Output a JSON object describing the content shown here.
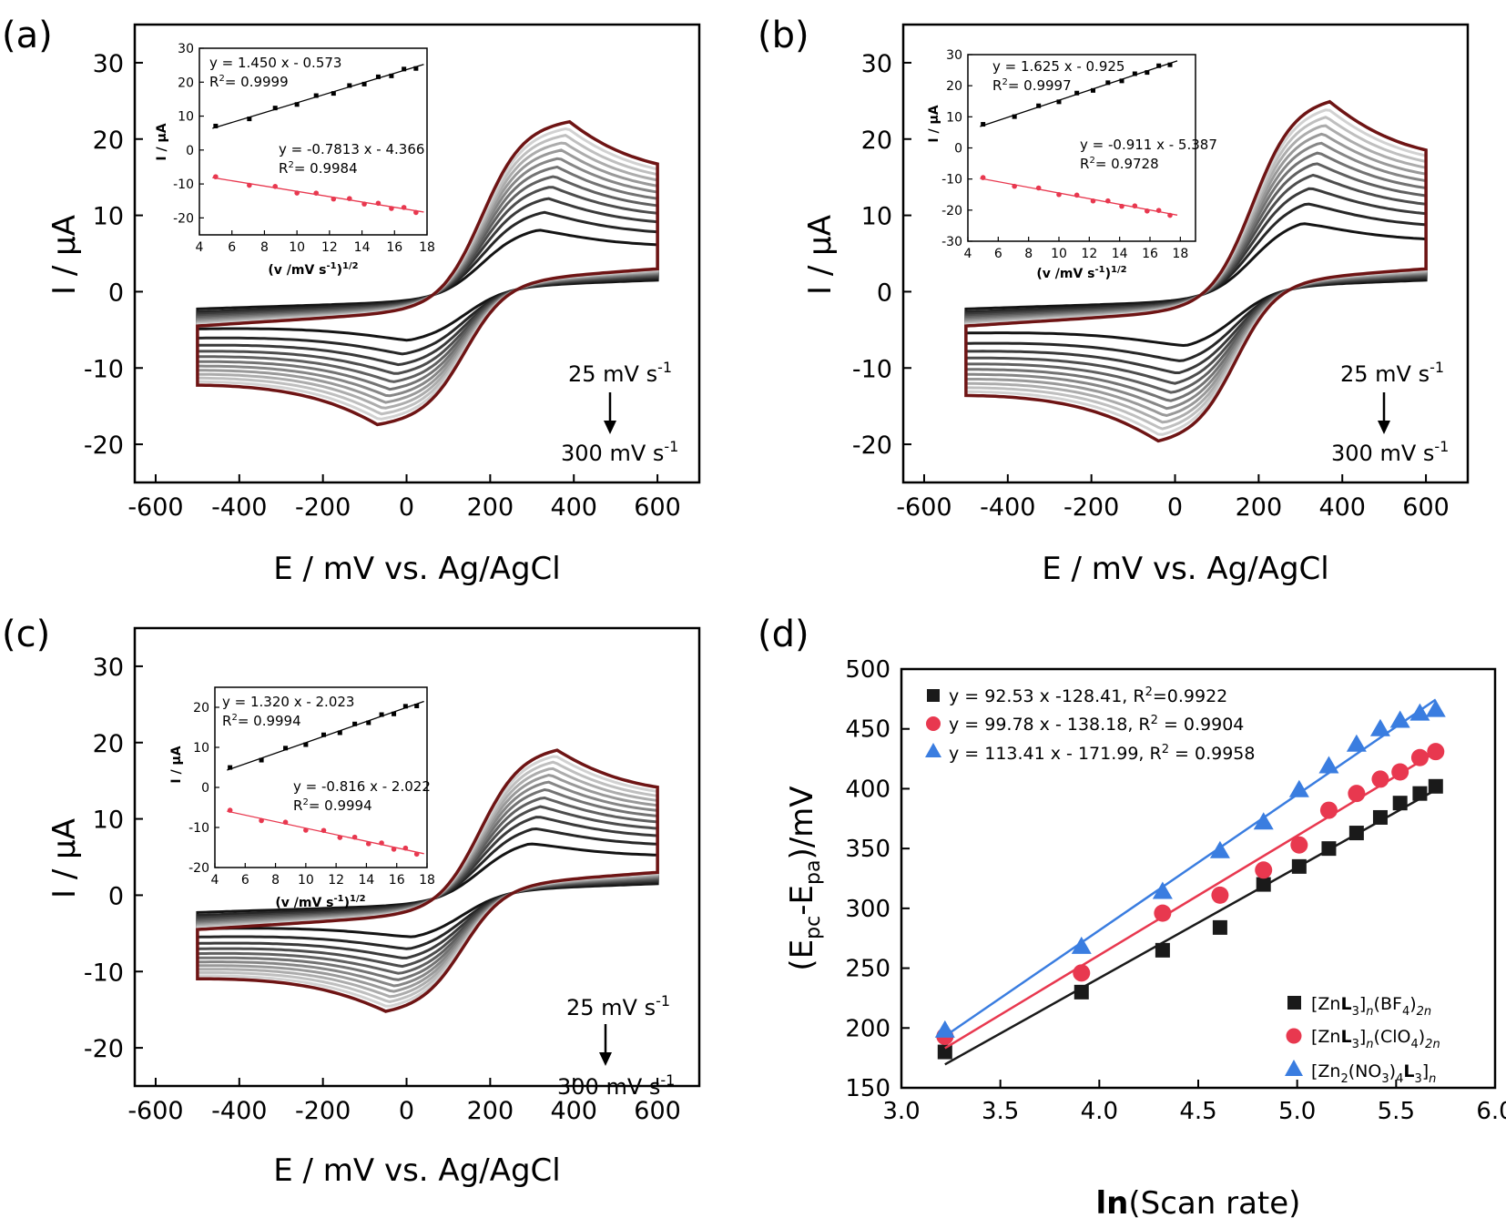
{
  "panels": {
    "a": {
      "letter": "(a)",
      "xlabel": "E / mV vs. Ag/AgCl",
      "ylabel": "I / μA",
      "xticks": [
        "-600",
        "-400",
        "-200",
        "0",
        "200",
        "400",
        "600"
      ],
      "yticks": [
        "30",
        "20",
        "10",
        "0",
        "-10",
        "-20"
      ],
      "rate_start": "25 mV s",
      "rate_end": "300 mV s",
      "rate_exp": "-1",
      "inset": {
        "xlabel": "(v /mV s",
        "xlabel_sup1": "-1",
        "xlabel_close": ")",
        "xlabel_sup2": "1/2",
        "ylabel": "I / μA",
        "xticks": [
          "4",
          "6",
          "8",
          "10",
          "12",
          "14",
          "16",
          "18"
        ],
        "yticks": [
          "30",
          "20",
          "10",
          "0",
          "-10",
          "-20"
        ],
        "eq1": "y = 1.450  x - 0.573",
        "r1_prefix": "R",
        "r1_sup": "2",
        "r1_value": "= 0.9999",
        "eq2": "y = -0.7813 x - 4.366",
        "r2_prefix": "R",
        "r2_sup": "2",
        "r2_value": "= 0.9984"
      }
    },
    "b": {
      "letter": "(b)",
      "xlabel": "E / mV vs. Ag/AgCl",
      "ylabel": "I / μA",
      "xticks": [
        "-600",
        "-400",
        "-200",
        "0",
        "200",
        "400",
        "600"
      ],
      "yticks": [
        "30",
        "20",
        "10",
        "0",
        "-10",
        "-20"
      ],
      "rate_start": "25 mV s",
      "rate_end": "300 mV s",
      "rate_exp": "-1",
      "inset": {
        "xlabel": "(v /mV s",
        "xlabel_sup1": "-1",
        "xlabel_close": ")",
        "xlabel_sup2": "1/2",
        "ylabel": "I / μA",
        "xticks": [
          "4",
          "6",
          "8",
          "10",
          "12",
          "14",
          "16",
          "18"
        ],
        "yticks": [
          "30",
          "20",
          "10",
          "0",
          "-10",
          "-20",
          "-30"
        ],
        "eq1": "y = 1.625 x - 0.925",
        "r1_prefix": "R",
        "r1_sup": "2",
        "r1_value": "= 0.9997",
        "eq2": "y = -0.911 x - 5.387",
        "r2_prefix": "R",
        "r2_sup": "2",
        "r2_value": "= 0.9728"
      }
    },
    "c": {
      "letter": "(c)",
      "xlabel": "E / mV vs. Ag/AgCl",
      "ylabel": "I / μA",
      "xticks": [
        "-600",
        "-400",
        "-200",
        "0",
        "200",
        "400",
        "600"
      ],
      "yticks": [
        "30",
        "20",
        "10",
        "0",
        "-10",
        "-20"
      ],
      "rate_start": "25 mV s",
      "rate_end": "300 mV s",
      "rate_exp": "-1",
      "inset": {
        "xlabel": "(v /mV s",
        "xlabel_sup1": "-1",
        "xlabel_close": ")",
        "xlabel_sup2": "1/2",
        "ylabel": "I / μA",
        "xticks": [
          "4",
          "6",
          "8",
          "10",
          "12",
          "14",
          "16",
          "18"
        ],
        "yticks": [
          "20",
          "10",
          "0",
          "-10",
          "-20"
        ],
        "eq1": "y = 1.320 x - 2.023",
        "r1_prefix": "R",
        "r1_sup": "2",
        "r1_value": "= 0.9994",
        "eq2": "y = -0.816 x - 2.022",
        "r2_prefix": "R",
        "r2_sup": "2",
        "r2_value": "= 0.9994"
      }
    },
    "d": {
      "letter": "(d)",
      "xlabel_bold": "ln",
      "xlabel_rest": "(Scan rate)",
      "ylabel_open": "(E",
      "ylabel_sub1": "pc",
      "ylabel_mid": "-E",
      "ylabel_sub2": "pa",
      "ylabel_close": ")/mV",
      "xticks": [
        "3.0",
        "3.5",
        "4.0",
        "4.5",
        "5.0",
        "5.5",
        "6.0"
      ],
      "yticks": [
        "500",
        "450",
        "400",
        "350",
        "300",
        "250",
        "200",
        "150"
      ],
      "eq1_pre": "y = 92.53 x -128.41,  R",
      "eq1_sup": "2",
      "eq1_post": "=0.9922",
      "eq2_pre": "y = 99.78 x - 138.18, R",
      "eq2_sup": "2",
      "eq2_post": " = 0.9904",
      "eq3_pre": "y = 113.41 x - 171.99, R",
      "eq3_sup": "2",
      "eq3_post": " = 0.9958",
      "leg1_a": "[Zn",
      "leg1_b": "L",
      "leg1_c": "3",
      "leg1_d": "]",
      "leg1_e": "n",
      "leg1_f": "(BF",
      "leg1_g": "4",
      "leg1_h": ")",
      "leg1_i": "2n",
      "leg2_a": "[Zn",
      "leg2_b": "L",
      "leg2_c": "3",
      "leg2_d": "]",
      "leg2_e": "n",
      "leg2_f": "(ClO",
      "leg2_g": "4",
      "leg2_h": ")",
      "leg2_i": "2n",
      "leg3_a": "[Zn",
      "leg3_a2": "2",
      "leg3_a3": "(NO",
      "leg3_a4": "3",
      "leg3_a5": ")",
      "leg3_a6": "4",
      "leg3_b": "L",
      "leg3_c": "3",
      "leg3_d": "]",
      "leg3_e": "n"
    }
  },
  "chart_data": [
    {
      "panel": "a",
      "type": "line",
      "xlabel": "E / mV vs. Ag/AgCl",
      "ylabel": "I / μA",
      "xlim": [
        -650,
        700
      ],
      "ylim": [
        -25,
        35
      ],
      "scan_rates_mV_s": [
        25,
        50,
        75,
        100,
        125,
        150,
        175,
        200,
        225,
        250,
        275,
        300
      ],
      "curve_params": {
        "e_ox": 390,
        "e_red": -70,
        "i_pa_max": 24,
        "i_pc_max": -18
      },
      "inset": {
        "type": "scatter",
        "xlabel": "(v /mV s-1)1/2",
        "ylabel": "I / μA",
        "xlim": [
          4,
          18
        ],
        "ylim": [
          -25,
          30
        ],
        "series": [
          {
            "x": [
              5,
              7.07,
              8.66,
              10,
              11.18,
              12.25,
              13.23,
              14.14,
              15,
              15.81,
              16.58,
              17.32
            ],
            "fit": [
              1.45,
              -0.573
            ],
            "color": "#000000"
          },
          {
            "x": [
              5,
              7.07,
              8.66,
              10,
              11.18,
              12.25,
              13.23,
              14.14,
              15,
              15.81,
              16.58,
              17.32
            ],
            "fit": [
              -0.7813,
              -4.366
            ],
            "color": "#e8384f"
          }
        ]
      }
    },
    {
      "panel": "b",
      "type": "line",
      "xlabel": "E / mV vs. Ag/AgCl",
      "ylabel": "I / μA",
      "xlim": [
        -650,
        700
      ],
      "ylim": [
        -25,
        35
      ],
      "scan_rates_mV_s": [
        25,
        50,
        75,
        100,
        125,
        150,
        175,
        200,
        225,
        250,
        275,
        300
      ],
      "curve_params": {
        "e_ox": 370,
        "e_red": -40,
        "i_pa_max": 27,
        "i_pc_max": -20.5
      },
      "inset": {
        "type": "scatter",
        "xlabel": "(v /mV s-1)1/2",
        "ylabel": "I / μA",
        "xlim": [
          4,
          19
        ],
        "ylim": [
          -30,
          30
        ],
        "series": [
          {
            "x": [
              5,
              7.07,
              8.66,
              10,
              11.18,
              12.25,
              13.23,
              14.14,
              15,
              15.81,
              16.58,
              17.32
            ],
            "fit": [
              1.625,
              -0.925
            ],
            "color": "#000000"
          },
          {
            "x": [
              5,
              7.07,
              8.66,
              10,
              11.18,
              12.25,
              13.23,
              14.14,
              15,
              15.81,
              16.58,
              17.32
            ],
            "fit": [
              -0.911,
              -5.387
            ],
            "color": "#e8384f"
          }
        ]
      }
    },
    {
      "panel": "c",
      "type": "line",
      "xlabel": "E / mV vs. Ag/AgCl",
      "ylabel": "I / μA",
      "xlim": [
        -650,
        700
      ],
      "ylim": [
        -25,
        35
      ],
      "scan_rates_mV_s": [
        25,
        50,
        75,
        100,
        125,
        150,
        175,
        200,
        225,
        250,
        275,
        300
      ],
      "curve_params": {
        "e_ox": 360,
        "e_red": -50,
        "i_pa_max": 21,
        "i_pc_max": -16
      },
      "inset": {
        "type": "scatter",
        "xlabel": "(v /mV s-1)1/2",
        "ylabel": "I / μA",
        "xlim": [
          4,
          18
        ],
        "ylim": [
          -20,
          25
        ],
        "series": [
          {
            "x": [
              5,
              7.07,
              8.66,
              10,
              11.18,
              12.25,
              13.23,
              14.14,
              15,
              15.81,
              16.58,
              17.32
            ],
            "fit": [
              1.32,
              -2.023
            ],
            "color": "#000000"
          },
          {
            "x": [
              5,
              7.07,
              8.66,
              10,
              11.18,
              12.25,
              13.23,
              14.14,
              15,
              15.81,
              16.58,
              17.32
            ],
            "fit": [
              -0.816,
              -2.022
            ],
            "color": "#e8384f"
          }
        ]
      }
    },
    {
      "panel": "d",
      "type": "scatter",
      "xlabel": "ln(Scan rate)",
      "ylabel": "(Epc-Epa)/mV",
      "xlim": [
        3.0,
        6.0
      ],
      "ylim": [
        150,
        500
      ],
      "x": [
        3.22,
        3.91,
        4.32,
        4.61,
        4.83,
        5.01,
        5.16,
        5.3,
        5.42,
        5.52,
        5.62,
        5.7
      ],
      "series": [
        {
          "name": "[ZnL3]n(BF4)2n",
          "marker": "square",
          "color": "#1a1a1a",
          "y": [
            180,
            230,
            265,
            284,
            320,
            335,
            350,
            363,
            376,
            388,
            396,
            402
          ],
          "fit": [
            92.53,
            -128.41
          ]
        },
        {
          "name": "[ZnL3]n(ClO4)2n",
          "marker": "circle",
          "color": "#e8384f",
          "y": [
            193,
            246,
            296,
            311,
            332,
            353,
            382,
            396,
            408,
            414,
            426,
            431
          ],
          "fit": [
            99.78,
            -138.18
          ]
        },
        {
          "name": "[Zn2(NO3)4L3]n",
          "marker": "triangle",
          "color": "#3a7de0",
          "y": [
            198,
            268,
            314,
            348,
            372,
            399,
            419,
            437,
            450,
            457,
            463,
            466
          ],
          "fit": [
            113.41,
            -171.99
          ]
        }
      ]
    }
  ]
}
